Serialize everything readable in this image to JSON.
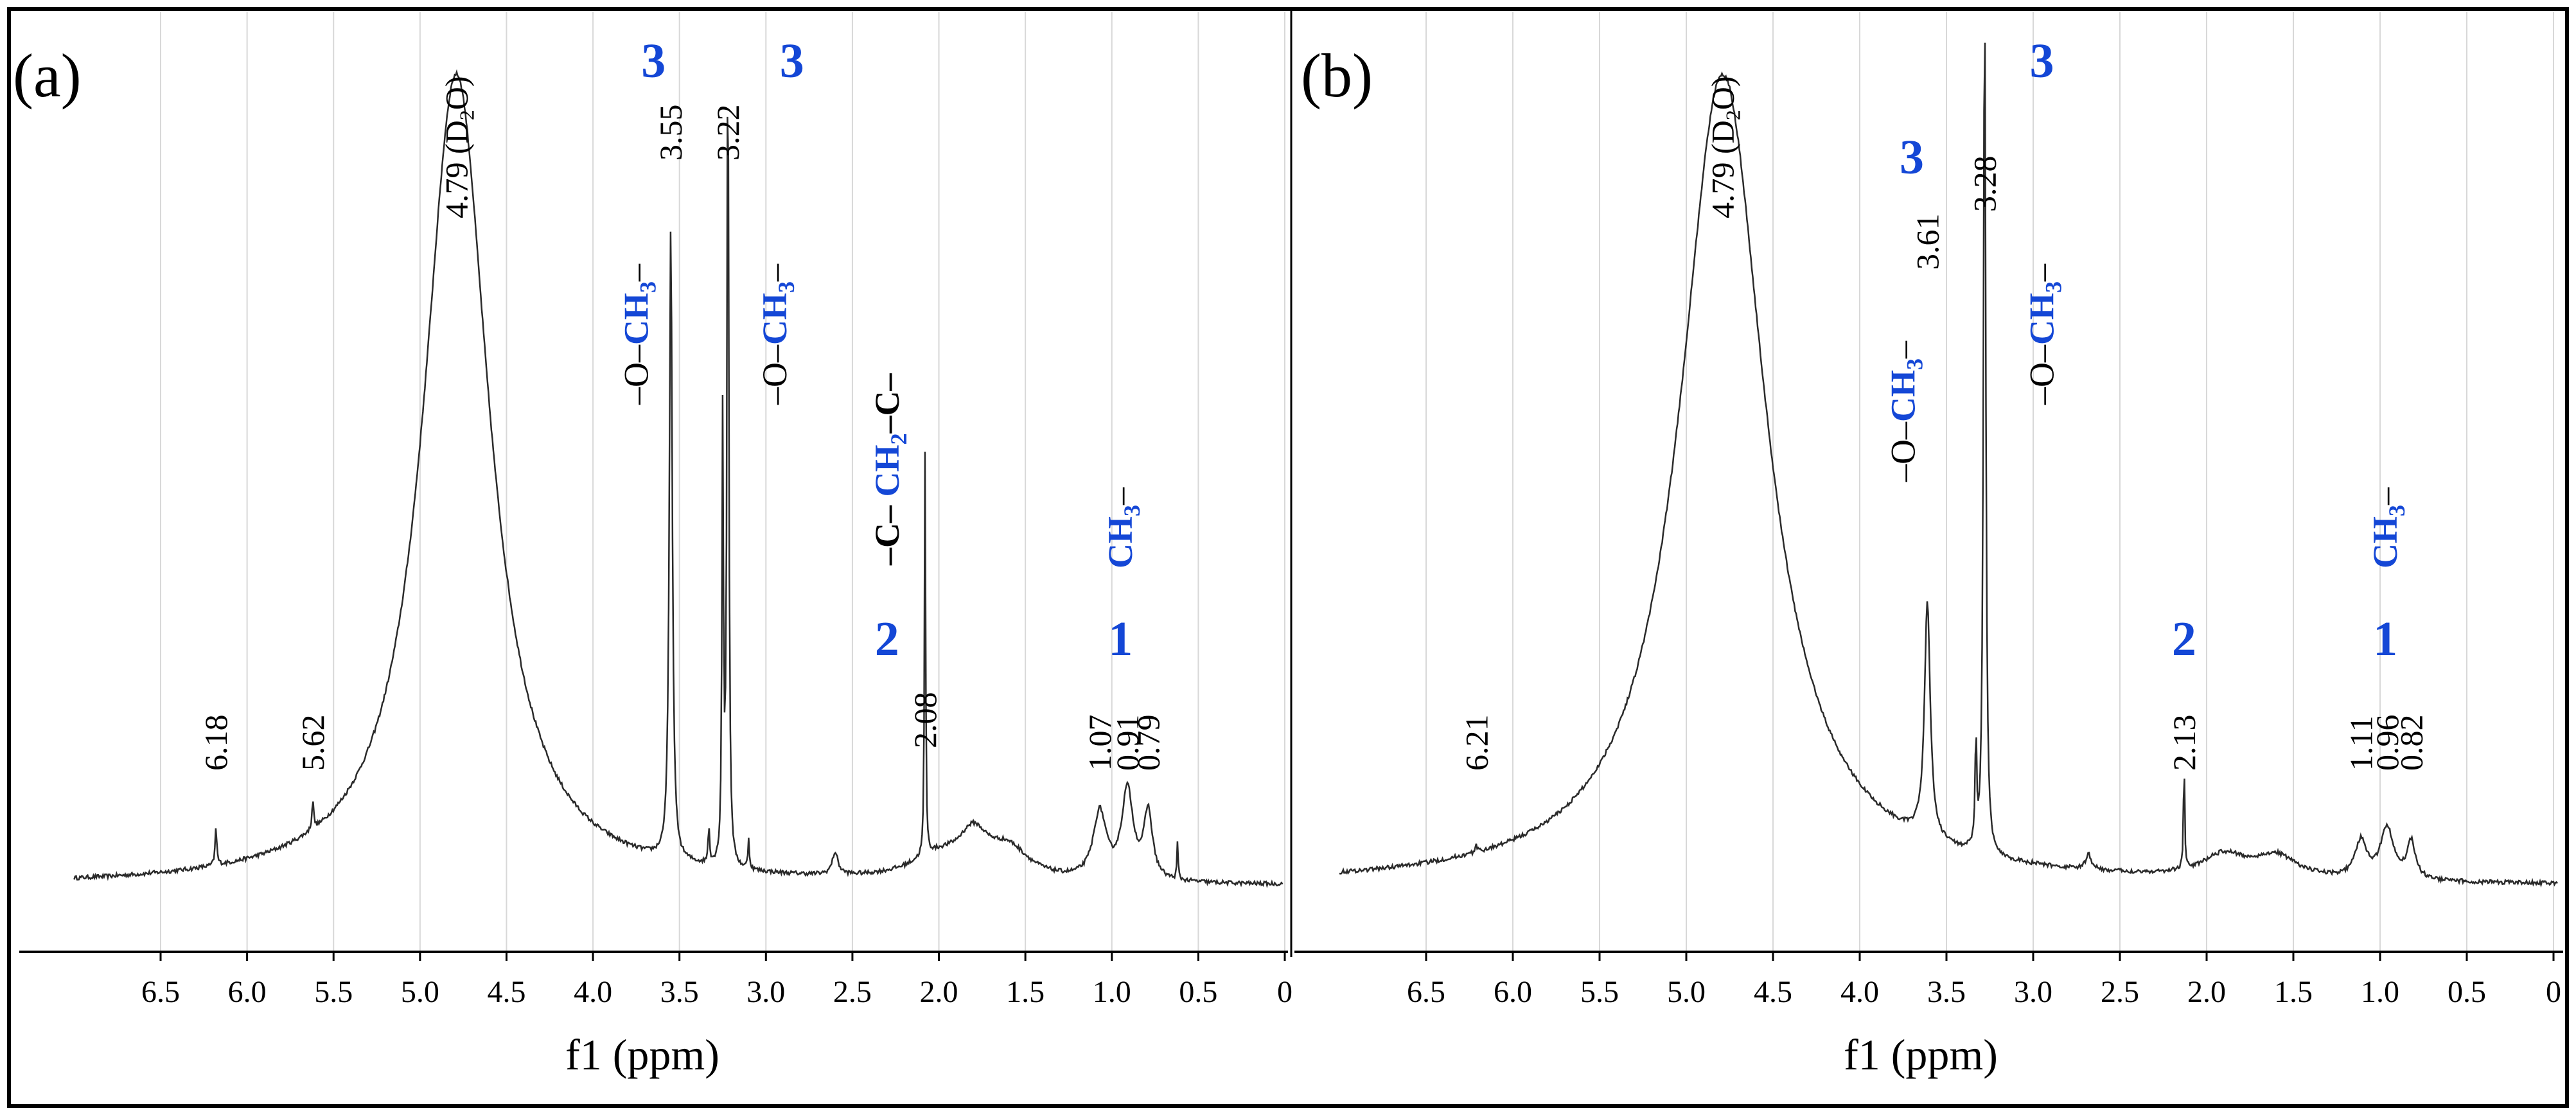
{
  "chart_data": [
    {
      "type": "line",
      "panel_label": "(a)",
      "xlabel": "f1 (ppm)",
      "x_reversed": true,
      "xlim": [
        7.0,
        0.0
      ],
      "ylim": [
        0,
        100
      ],
      "ticks": [
        "6.5",
        "6.0",
        "5.5",
        "5.0",
        "4.5",
        "4.0",
        "3.5",
        "3.0",
        "2.5",
        "2.0",
        "1.5",
        "1.0",
        "0.5",
        "0"
      ],
      "tick_values": [
        6.5,
        6.0,
        5.5,
        5.0,
        4.5,
        4.0,
        3.5,
        3.0,
        2.5,
        2.0,
        1.5,
        1.0,
        0.5,
        0.0
      ],
      "grid": true,
      "baseline": 3,
      "broad_peaks": [
        {
          "x": 4.79,
          "height": 110,
          "width": 0.23
        },
        {
          "x": 1.8,
          "height": 5,
          "width": 0.1
        },
        {
          "x": 1.6,
          "height": 4,
          "width": 0.15
        },
        {
          "x": 2.0,
          "height": 3,
          "width": 0.2
        }
      ],
      "sharp_peaks": [
        {
          "x": 6.18,
          "height": 5,
          "width": 0.006
        },
        {
          "x": 5.62,
          "height": 4,
          "width": 0.006
        },
        {
          "x": 3.55,
          "height": 86,
          "width": 0.01
        },
        {
          "x": 3.22,
          "height": 118,
          "width": 0.006
        },
        {
          "x": 3.25,
          "height": 60,
          "width": 0.005
        },
        {
          "x": 3.33,
          "height": 5,
          "width": 0.005
        },
        {
          "x": 3.1,
          "height": 4,
          "width": 0.005
        },
        {
          "x": 2.6,
          "height": 3,
          "width": 0.02
        },
        {
          "x": 2.08,
          "height": 55,
          "width": 0.004
        },
        {
          "x": 1.07,
          "height": 9,
          "width": 0.045
        },
        {
          "x": 0.91,
          "height": 12,
          "width": 0.04
        },
        {
          "x": 0.79,
          "height": 9,
          "width": 0.03
        },
        {
          "x": 0.62,
          "height": 5,
          "width": 0.004
        }
      ],
      "peak_labels": [
        {
          "x": 6.18,
          "text": "6.18"
        },
        {
          "x": 5.62,
          "text": "5.62"
        },
        {
          "x": 4.79,
          "text": "4.79 (D",
          "sub": "2",
          "rest": "O)"
        },
        {
          "x": 3.55,
          "text": "3.55"
        },
        {
          "x": 3.22,
          "text": "3.22"
        },
        {
          "x": 2.08,
          "text": "2.08"
        },
        {
          "x": 1.07,
          "text": "1.07"
        },
        {
          "x": 0.91,
          "text": "0.91"
        },
        {
          "x": 0.79,
          "text": "0.79"
        }
      ],
      "group_labels": [
        {
          "x": 3.65,
          "text": "3"
        },
        {
          "x": 2.85,
          "text": "3"
        },
        {
          "x": 2.3,
          "text": "2"
        },
        {
          "x": 0.95,
          "text": "1"
        }
      ],
      "assignments": [
        {
          "x": 3.75,
          "parts": [
            "–O–",
            "CH",
            "3",
            "–"
          ]
        },
        {
          "x": 2.95,
          "parts": [
            "–O–",
            "CH",
            "3",
            "–"
          ]
        },
        {
          "x": 2.3,
          "parts": [
            "–C– ",
            "CH",
            "2",
            "–C–"
          ]
        },
        {
          "x": 0.95,
          "parts": [
            "",
            "CH",
            "3",
            "–"
          ]
        }
      ]
    },
    {
      "type": "line",
      "panel_label": "(b)",
      "xlabel": "f1 (ppm)",
      "x_reversed": true,
      "xlim": [
        7.0,
        0.0
      ],
      "ylim": [
        0,
        100
      ],
      "ticks": [
        "6.5",
        "6.0",
        "5.5",
        "5.0",
        "4.5",
        "4.0",
        "3.5",
        "3.0",
        "2.5",
        "2.0",
        "1.5",
        "1.0",
        "0.5",
        "0"
      ],
      "tick_values": [
        6.5,
        6.0,
        5.5,
        5.0,
        4.5,
        4.0,
        3.5,
        3.0,
        2.5,
        2.0,
        1.5,
        1.0,
        0.5,
        0.0
      ],
      "grid": true,
      "baseline": 3,
      "broad_peaks": [
        {
          "x": 4.79,
          "height": 110,
          "width": 0.3
        },
        {
          "x": 1.9,
          "height": 3,
          "width": 0.15
        },
        {
          "x": 1.6,
          "height": 3,
          "width": 0.15
        }
      ],
      "sharp_peaks": [
        {
          "x": 6.21,
          "height": 1,
          "width": 0.006
        },
        {
          "x": 3.61,
          "height": 32,
          "width": 0.02
        },
        {
          "x": 3.28,
          "height": 118,
          "width": 0.008
        },
        {
          "x": 3.33,
          "height": 15,
          "width": 0.005
        },
        {
          "x": 2.68,
          "height": 2,
          "width": 0.02
        },
        {
          "x": 2.13,
          "height": 16,
          "width": 0.004
        },
        {
          "x": 1.11,
          "height": 5,
          "width": 0.04
        },
        {
          "x": 0.96,
          "height": 7,
          "width": 0.045
        },
        {
          "x": 0.82,
          "height": 5,
          "width": 0.03
        }
      ],
      "peak_labels": [
        {
          "x": 6.21,
          "text": "6.21"
        },
        {
          "x": 4.79,
          "text": "4.79 (D",
          "sub": "2",
          "rest": "O)"
        },
        {
          "x": 3.61,
          "text": "3.61"
        },
        {
          "x": 3.28,
          "text": "3.28"
        },
        {
          "x": 2.13,
          "text": "2.13"
        },
        {
          "x": 1.11,
          "text": "1.11"
        },
        {
          "x": 0.96,
          "text": "0.96"
        },
        {
          "x": 0.82,
          "text": "0.82"
        }
      ],
      "group_labels": [
        {
          "x": 3.7,
          "text": "3"
        },
        {
          "x": 2.95,
          "text": "3"
        },
        {
          "x": 2.13,
          "text": "2"
        },
        {
          "x": 0.97,
          "text": "1"
        }
      ],
      "assignments": [
        {
          "x": 3.75,
          "parts": [
            "–O–",
            "CH",
            "3",
            "–"
          ]
        },
        {
          "x": 2.95,
          "parts": [
            "–O–",
            "CH",
            "3",
            "–"
          ]
        },
        {
          "x": 0.97,
          "parts": [
            "",
            "CH",
            "3",
            "–"
          ]
        }
      ]
    }
  ],
  "colors": {
    "blue_label": "#1447d6",
    "spectrum": "#2a2a2a",
    "grid": "#d8d8d8",
    "text": "#000000"
  }
}
